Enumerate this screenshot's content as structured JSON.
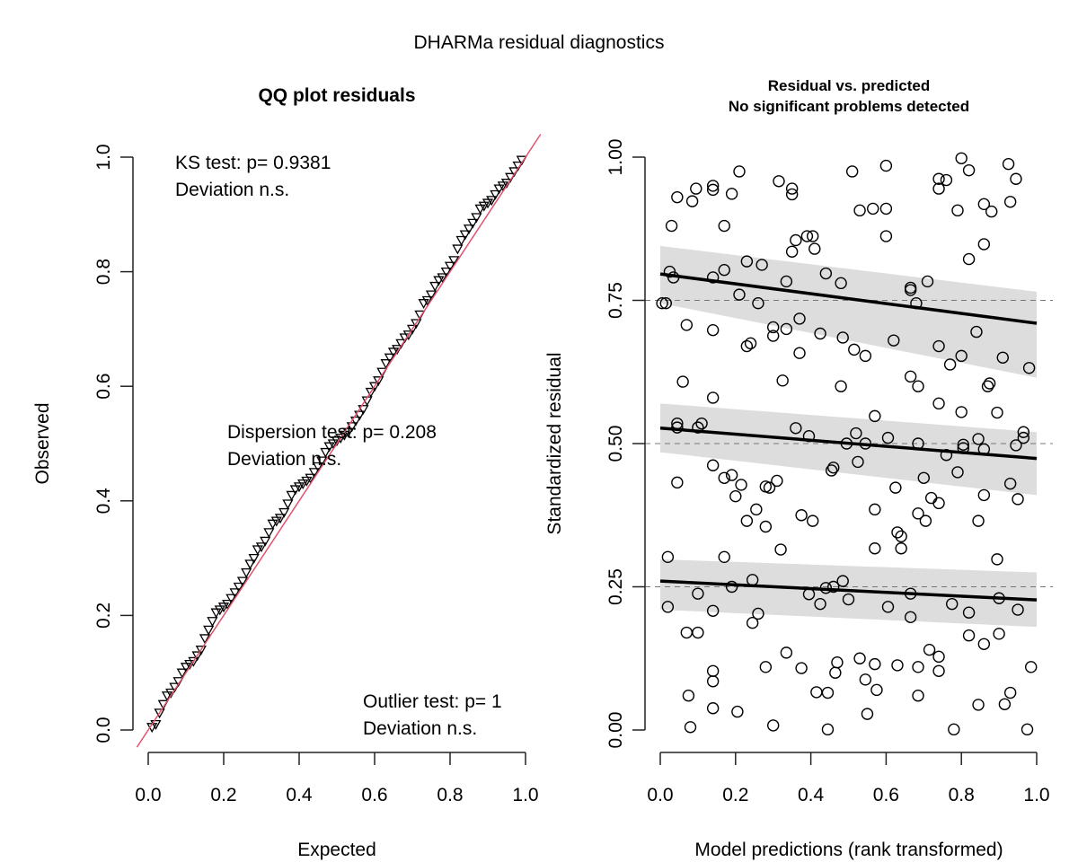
{
  "suptitle": "DHARMa residual diagnostics",
  "chart_data": [
    {
      "type": "scatter",
      "title": "QQ plot residuals",
      "xlabel": "Expected",
      "ylabel": "Observed",
      "xlim": [
        0,
        1
      ],
      "ylim": [
        0,
        1
      ],
      "xticks": [
        "0.0",
        "0.2",
        "0.4",
        "0.6",
        "0.8",
        "1.0"
      ],
      "yticks": [
        "0.0",
        "0.2",
        "0.4",
        "0.6",
        "0.8",
        "1.0"
      ],
      "marker": "triangle-down",
      "reference_line": {
        "intercept": 0,
        "slope": 1,
        "color": "#DF536B"
      },
      "quantiles": [
        [
          0.01,
          0.005
        ],
        [
          0.02,
          0.01
        ],
        [
          0.03,
          0.03
        ],
        [
          0.04,
          0.045
        ],
        [
          0.05,
          0.06
        ],
        [
          0.06,
          0.065
        ],
        [
          0.07,
          0.075
        ],
        [
          0.08,
          0.085
        ],
        [
          0.09,
          0.1
        ],
        [
          0.1,
          0.11
        ],
        [
          0.11,
          0.115
        ],
        [
          0.12,
          0.12
        ],
        [
          0.13,
          0.13
        ],
        [
          0.14,
          0.14
        ],
        [
          0.15,
          0.16
        ],
        [
          0.16,
          0.175
        ],
        [
          0.17,
          0.19
        ],
        [
          0.18,
          0.205
        ],
        [
          0.19,
          0.21
        ],
        [
          0.2,
          0.215
        ],
        [
          0.21,
          0.22
        ],
        [
          0.22,
          0.23
        ],
        [
          0.23,
          0.24
        ],
        [
          0.24,
          0.25
        ],
        [
          0.25,
          0.26
        ],
        [
          0.26,
          0.275
        ],
        [
          0.27,
          0.29
        ],
        [
          0.28,
          0.3
        ],
        [
          0.29,
          0.315
        ],
        [
          0.3,
          0.32
        ],
        [
          0.31,
          0.33
        ],
        [
          0.32,
          0.345
        ],
        [
          0.33,
          0.36
        ],
        [
          0.34,
          0.365
        ],
        [
          0.35,
          0.37
        ],
        [
          0.36,
          0.38
        ],
        [
          0.37,
          0.395
        ],
        [
          0.38,
          0.41
        ],
        [
          0.39,
          0.42
        ],
        [
          0.4,
          0.425
        ],
        [
          0.41,
          0.43
        ],
        [
          0.42,
          0.435
        ],
        [
          0.43,
          0.44
        ],
        [
          0.44,
          0.45
        ],
        [
          0.45,
          0.46
        ],
        [
          0.46,
          0.47
        ],
        [
          0.47,
          0.485
        ],
        [
          0.48,
          0.495
        ],
        [
          0.49,
          0.5
        ],
        [
          0.5,
          0.505
        ],
        [
          0.51,
          0.51
        ],
        [
          0.52,
          0.515
        ],
        [
          0.53,
          0.52
        ],
        [
          0.54,
          0.53
        ],
        [
          0.55,
          0.54
        ],
        [
          0.56,
          0.55
        ],
        [
          0.57,
          0.56
        ],
        [
          0.58,
          0.575
        ],
        [
          0.59,
          0.59
        ],
        [
          0.6,
          0.6
        ],
        [
          0.61,
          0.61
        ],
        [
          0.62,
          0.625
        ],
        [
          0.63,
          0.64
        ],
        [
          0.64,
          0.65
        ],
        [
          0.65,
          0.66
        ],
        [
          0.66,
          0.665
        ],
        [
          0.67,
          0.675
        ],
        [
          0.68,
          0.685
        ],
        [
          0.69,
          0.69
        ],
        [
          0.7,
          0.7
        ],
        [
          0.71,
          0.71
        ],
        [
          0.72,
          0.725
        ],
        [
          0.73,
          0.745
        ],
        [
          0.74,
          0.75
        ],
        [
          0.75,
          0.76
        ],
        [
          0.76,
          0.775
        ],
        [
          0.77,
          0.785
        ],
        [
          0.78,
          0.79
        ],
        [
          0.79,
          0.8
        ],
        [
          0.8,
          0.81
        ],
        [
          0.81,
          0.82
        ],
        [
          0.82,
          0.84
        ],
        [
          0.83,
          0.855
        ],
        [
          0.84,
          0.865
        ],
        [
          0.85,
          0.875
        ],
        [
          0.86,
          0.885
        ],
        [
          0.87,
          0.895
        ],
        [
          0.88,
          0.91
        ],
        [
          0.89,
          0.915
        ],
        [
          0.9,
          0.92
        ],
        [
          0.91,
          0.925
        ],
        [
          0.92,
          0.935
        ],
        [
          0.93,
          0.945
        ],
        [
          0.94,
          0.95
        ],
        [
          0.95,
          0.955
        ],
        [
          0.96,
          0.965
        ],
        [
          0.97,
          0.975
        ],
        [
          0.98,
          0.985
        ],
        [
          0.99,
          0.995
        ]
      ],
      "annotations": [
        {
          "lines": [
            "KS test: p= 0.9381",
            "Deviation  n.s."
          ],
          "position": "top-left"
        },
        {
          "lines": [
            "Dispersion test: p= 0.208",
            "Deviation  n.s."
          ],
          "position": "center"
        },
        {
          "lines": [
            "Outlier test: p= 1",
            "Deviation  n.s."
          ],
          "position": "bottom-right"
        }
      ]
    },
    {
      "type": "scatter",
      "title": "Residual vs. predicted",
      "subtitle": "No significant problems detected",
      "xlabel": "Model predictions (rank transformed)",
      "ylabel": "Standardized residual",
      "xlim": [
        0,
        1
      ],
      "ylim": [
        0,
        1
      ],
      "xticks": [
        "0.0",
        "0.2",
        "0.4",
        "0.6",
        "0.8",
        "1.0"
      ],
      "yticks": [
        "0.00",
        "0.25",
        "0.50",
        "0.75",
        "1.00"
      ],
      "hlines": [
        0.25,
        0.5,
        0.75
      ],
      "marker": "circle-open",
      "quantile_fits": [
        {
          "quantile": 0.25,
          "x": [
            0,
            1
          ],
          "y": [
            0.26,
            0.227
          ],
          "band_lo": [
            0.21,
            0.18
          ],
          "band_hi": [
            0.298,
            0.275
          ],
          "band_color": "#DDDDDD"
        },
        {
          "quantile": 0.5,
          "x": [
            0,
            1
          ],
          "y": [
            0.527,
            0.474
          ],
          "band_lo": [
            0.485,
            0.41
          ],
          "band_hi": [
            0.57,
            0.52
          ],
          "band_color": "#DDDDDD"
        },
        {
          "quantile": 0.75,
          "x": [
            0,
            1
          ],
          "y": [
            0.796,
            0.71
          ],
          "band_lo": [
            0.745,
            0.615
          ],
          "band_hi": [
            0.845,
            0.765
          ],
          "band_color": "#DDDDDD"
        }
      ],
      "points": [
        [
          0.005,
          0.745
        ],
        [
          0.015,
          0.745
        ],
        [
          0.02,
          0.302
        ],
        [
          0.02,
          0.215
        ],
        [
          0.025,
          0.8
        ],
        [
          0.03,
          0.88
        ],
        [
          0.035,
          0.79
        ],
        [
          0.045,
          0.93
        ],
        [
          0.045,
          0.535
        ],
        [
          0.045,
          0.528
        ],
        [
          0.045,
          0.432
        ],
        [
          0.06,
          0.608
        ],
        [
          0.07,
          0.17
        ],
        [
          0.07,
          0.707
        ],
        [
          0.075,
          0.06
        ],
        [
          0.08,
          0.005
        ],
        [
          0.085,
          0.923
        ],
        [
          0.095,
          0.945
        ],
        [
          0.1,
          0.528
        ],
        [
          0.1,
          0.17
        ],
        [
          0.1,
          0.238
        ],
        [
          0.11,
          0.535
        ],
        [
          0.14,
          0.95
        ],
        [
          0.14,
          0.943
        ],
        [
          0.14,
          0.79
        ],
        [
          0.14,
          0.698
        ],
        [
          0.14,
          0.58
        ],
        [
          0.14,
          0.462
        ],
        [
          0.14,
          0.208
        ],
        [
          0.14,
          0.103
        ],
        [
          0.14,
          0.085
        ],
        [
          0.14,
          0.038
        ],
        [
          0.17,
          0.88
        ],
        [
          0.17,
          0.803
        ],
        [
          0.17,
          0.44
        ],
        [
          0.17,
          0.302
        ],
        [
          0.19,
          0.936
        ],
        [
          0.19,
          0.445
        ],
        [
          0.19,
          0.25
        ],
        [
          0.2,
          0.408
        ],
        [
          0.205,
          0.032
        ],
        [
          0.21,
          0.975
        ],
        [
          0.21,
          0.76
        ],
        [
          0.215,
          0.428
        ],
        [
          0.23,
          0.818
        ],
        [
          0.23,
          0.67
        ],
        [
          0.23,
          0.365
        ],
        [
          0.24,
          0.675
        ],
        [
          0.245,
          0.262
        ],
        [
          0.245,
          0.187
        ],
        [
          0.255,
          0.385
        ],
        [
          0.26,
          0.745
        ],
        [
          0.26,
          0.203
        ],
        [
          0.27,
          0.812
        ],
        [
          0.28,
          0.425
        ],
        [
          0.28,
          0.355
        ],
        [
          0.28,
          0.11
        ],
        [
          0.29,
          0.423
        ],
        [
          0.3,
          0.703
        ],
        [
          0.3,
          0.688
        ],
        [
          0.3,
          0.008
        ],
        [
          0.31,
          0.435
        ],
        [
          0.315,
          0.958
        ],
        [
          0.32,
          0.315
        ],
        [
          0.325,
          0.61
        ],
        [
          0.335,
          0.7
        ],
        [
          0.335,
          0.783
        ],
        [
          0.335,
          0.135
        ],
        [
          0.35,
          0.945
        ],
        [
          0.35,
          0.935
        ],
        [
          0.35,
          0.835
        ],
        [
          0.36,
          0.855
        ],
        [
          0.36,
          0.527
        ],
        [
          0.37,
          0.718
        ],
        [
          0.37,
          0.658
        ],
        [
          0.375,
          0.375
        ],
        [
          0.375,
          0.108
        ],
        [
          0.39,
          0.862
        ],
        [
          0.395,
          0.513
        ],
        [
          0.395,
          0.237
        ],
        [
          0.405,
          0.862
        ],
        [
          0.405,
          0.365
        ],
        [
          0.41,
          0.84
        ],
        [
          0.415,
          0.066
        ],
        [
          0.425,
          0.692
        ],
        [
          0.425,
          0.22
        ],
        [
          0.44,
          0.797
        ],
        [
          0.44,
          0.248
        ],
        [
          0.445,
          0.065
        ],
        [
          0.445,
          0.001
        ],
        [
          0.455,
          0.453
        ],
        [
          0.46,
          0.458
        ],
        [
          0.46,
          0.25
        ],
        [
          0.465,
          0.1
        ],
        [
          0.47,
          0.118
        ],
        [
          0.48,
          0.78
        ],
        [
          0.48,
          0.6
        ],
        [
          0.485,
          0.685
        ],
        [
          0.485,
          0.26
        ],
        [
          0.495,
          0.5
        ],
        [
          0.5,
          0.228
        ],
        [
          0.51,
          0.975
        ],
        [
          0.515,
          0.664
        ],
        [
          0.52,
          0.518
        ],
        [
          0.525,
          0.468
        ],
        [
          0.53,
          0.907
        ],
        [
          0.53,
          0.125
        ],
        [
          0.545,
          0.653
        ],
        [
          0.545,
          0.5
        ],
        [
          0.545,
          0.088
        ],
        [
          0.55,
          0.028
        ],
        [
          0.565,
          0.91
        ],
        [
          0.57,
          0.548
        ],
        [
          0.57,
          0.385
        ],
        [
          0.57,
          0.317
        ],
        [
          0.57,
          0.115
        ],
        [
          0.575,
          0.07
        ],
        [
          0.6,
          0.91
        ],
        [
          0.6,
          0.862
        ],
        [
          0.6,
          0.985
        ],
        [
          0.605,
          0.51
        ],
        [
          0.605,
          0.215
        ],
        [
          0.62,
          0.68
        ],
        [
          0.625,
          0.423
        ],
        [
          0.63,
          0.345
        ],
        [
          0.63,
          0.113
        ],
        [
          0.64,
          0.338
        ],
        [
          0.64,
          0.317
        ],
        [
          0.665,
          0.772
        ],
        [
          0.665,
          0.768
        ],
        [
          0.665,
          0.617
        ],
        [
          0.665,
          0.238
        ],
        [
          0.665,
          0.197
        ],
        [
          0.68,
          0.745
        ],
        [
          0.685,
          0.6
        ],
        [
          0.685,
          0.5
        ],
        [
          0.685,
          0.378
        ],
        [
          0.685,
          0.11
        ],
        [
          0.685,
          0.06
        ],
        [
          0.7,
          0.44
        ],
        [
          0.705,
          0.365
        ],
        [
          0.71,
          0.783
        ],
        [
          0.715,
          0.14
        ],
        [
          0.72,
          0.405
        ],
        [
          0.74,
          0.962
        ],
        [
          0.74,
          0.945
        ],
        [
          0.74,
          0.67
        ],
        [
          0.74,
          0.57
        ],
        [
          0.74,
          0.396
        ],
        [
          0.74,
          0.128
        ],
        [
          0.74,
          0.103
        ],
        [
          0.76,
          0.96
        ],
        [
          0.76,
          0.48
        ],
        [
          0.77,
          0.638
        ],
        [
          0.775,
          0.22
        ],
        [
          0.78,
          0.001
        ],
        [
          0.79,
          0.907
        ],
        [
          0.79,
          0.45
        ],
        [
          0.8,
          0.998
        ],
        [
          0.8,
          0.555
        ],
        [
          0.805,
          0.498
        ],
        [
          0.805,
          0.492
        ],
        [
          0.8,
          0.653
        ],
        [
          0.82,
          0.977
        ],
        [
          0.82,
          0.822
        ],
        [
          0.82,
          0.205
        ],
        [
          0.82,
          0.165
        ],
        [
          0.84,
          0.695
        ],
        [
          0.845,
          0.508
        ],
        [
          0.845,
          0.365
        ],
        [
          0.845,
          0.044
        ],
        [
          0.86,
          0.848
        ],
        [
          0.86,
          0.918
        ],
        [
          0.86,
          0.49
        ],
        [
          0.86,
          0.41
        ],
        [
          0.86,
          0.15
        ],
        [
          0.87,
          0.6
        ],
        [
          0.875,
          0.605
        ],
        [
          0.88,
          0.905
        ],
        [
          0.895,
          0.554
        ],
        [
          0.895,
          0.298
        ],
        [
          0.9,
          0.23
        ],
        [
          0.9,
          0.168
        ],
        [
          0.91,
          0.65
        ],
        [
          0.915,
          0.045
        ],
        [
          0.925,
          0.988
        ],
        [
          0.93,
          0.922
        ],
        [
          0.93,
          0.43
        ],
        [
          0.93,
          0.065
        ],
        [
          0.945,
          0.962
        ],
        [
          0.945,
          0.497
        ],
        [
          0.95,
          0.403
        ],
        [
          0.95,
          0.21
        ],
        [
          0.965,
          0.51
        ],
        [
          0.965,
          0.52
        ],
        [
          0.975,
          0.001
        ],
        [
          0.98,
          0.632
        ],
        [
          0.985,
          0.11
        ]
      ]
    }
  ]
}
